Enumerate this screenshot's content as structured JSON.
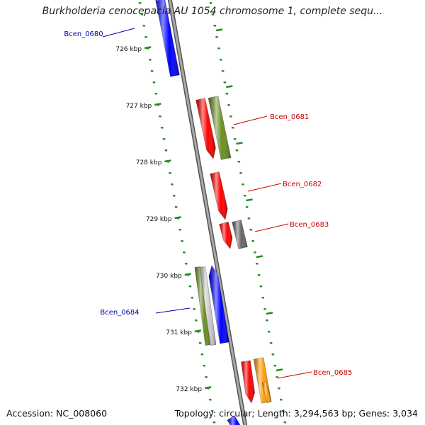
{
  "title": "Burkholderia cenocepacia AU 1054 chromosome 1, complete sequ...",
  "footer": {
    "accession": "Accession: NC_008060",
    "summary": "Topology: circular; Length: 3,294,563 bp; Genes: 3,034"
  },
  "colors": {
    "backbone": "#8c8c8c",
    "tick": "#228b22",
    "forward_label": "#cc0000",
    "reverse_label": "#0000aa",
    "blue": "#0000ff",
    "red": "#ff0000",
    "olive": "#6b8e23",
    "gray": "#666666",
    "silver": "#c8c8c8",
    "orange": "#ff9900"
  },
  "ticks": [
    {
      "label": "726 kbp"
    },
    {
      "label": "727 kbp"
    },
    {
      "label": "728 kbp"
    },
    {
      "label": "729 kbp"
    },
    {
      "label": "730 kbp"
    },
    {
      "label": "731 kbp"
    },
    {
      "label": "732 kbp"
    }
  ],
  "labels": [
    {
      "text": "Bcen_0680",
      "strand": "reverse"
    },
    {
      "text": "Bcen_0681",
      "strand": "forward"
    },
    {
      "text": "Bcen_0682",
      "strand": "forward"
    },
    {
      "text": "Bcen_0683",
      "strand": "forward"
    },
    {
      "text": "Bcen_0684",
      "strand": "reverse"
    },
    {
      "text": "Bcen_0685",
      "strand": "forward"
    }
  ]
}
